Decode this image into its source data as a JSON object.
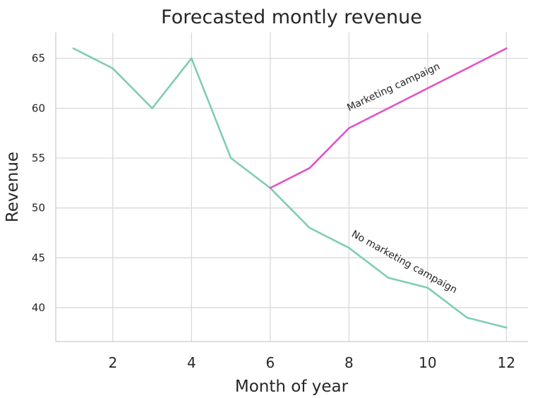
{
  "chart_data": {
    "type": "line",
    "title": "Forecasted montly revenue",
    "xlabel": "Month of year",
    "ylabel": "Revenue",
    "xlim": [
      0.55,
      12.55
    ],
    "ylim": [
      36.6,
      67.6
    ],
    "xticks": [
      2,
      4,
      6,
      8,
      10,
      12
    ],
    "yticks": [
      40,
      45,
      50,
      55,
      60,
      65
    ],
    "grid": true,
    "series": [
      {
        "color": "#7fcdb4",
        "x": [
          1,
          2,
          3,
          4,
          5,
          6,
          7,
          8,
          9,
          10,
          11,
          12
        ],
        "values": [
          66,
          64,
          60,
          65,
          55,
          52,
          48,
          46,
          43,
          42,
          39,
          38
        ]
      },
      {
        "color": "#e052c8",
        "x": [
          6,
          7,
          8,
          9,
          10,
          11,
          12
        ],
        "values": [
          52,
          54,
          58,
          60,
          62,
          64,
          66
        ]
      }
    ],
    "annotations": [
      {
        "text": "Marketing campaign",
        "x": 8,
        "y": 59.7,
        "angle": -25
      },
      {
        "text": "No marketing campaign",
        "x": 8.05,
        "y": 47.2,
        "angle": 29
      }
    ]
  }
}
